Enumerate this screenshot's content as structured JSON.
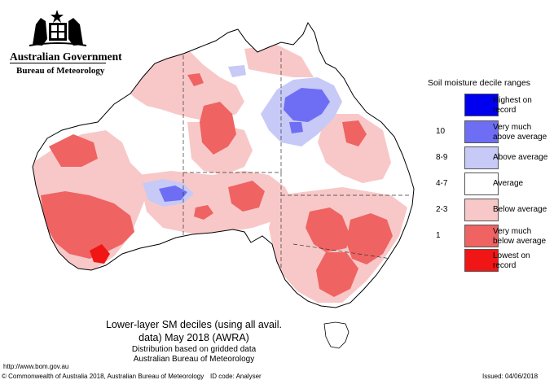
{
  "header": {
    "gov_name": "Australian Government",
    "agency": "Bureau of Meteorology",
    "crest_icon": "commonwealth-coat-of-arms-icon"
  },
  "legend": {
    "title": "Soil moisture decile ranges",
    "items": [
      {
        "range": "",
        "label_line1": "Highest on",
        "label_line2": "record",
        "color": "#0000ee"
      },
      {
        "range": "10",
        "label_line1": "Very much",
        "label_line2": "above average",
        "color": "#6e6ef5"
      },
      {
        "range": "8-9",
        "label_line1": "Above average",
        "label_line2": "",
        "color": "#c7c9f7"
      },
      {
        "range": "4-7",
        "label_line1": "Average",
        "label_line2": "",
        "color": "#ffffff"
      },
      {
        "range": "2-3",
        "label_line1": "Below average",
        "label_line2": "",
        "color": "#f8c8c8"
      },
      {
        "range": "1",
        "label_line1": "Very much",
        "label_line2": "below average",
        "color": "#ef6363"
      },
      {
        "range": "",
        "label_line1": "Lowest on",
        "label_line2": "record",
        "color": "#f01616"
      }
    ]
  },
  "caption": {
    "line1": "Lower-layer SM deciles (using all avail.",
    "line2": "data) May 2018 (AWRA)",
    "line3": "Distribution based on gridded data",
    "line4": "Australian Bureau of Meteorology"
  },
  "footer": {
    "url": "http://www.bom.gov.au",
    "copyright": "© Commonwealth of Australia 2018, Australian Bureau of Meteorology",
    "id_code": "ID code: Analyser",
    "issued": "Issued: 04/06/2018"
  }
}
